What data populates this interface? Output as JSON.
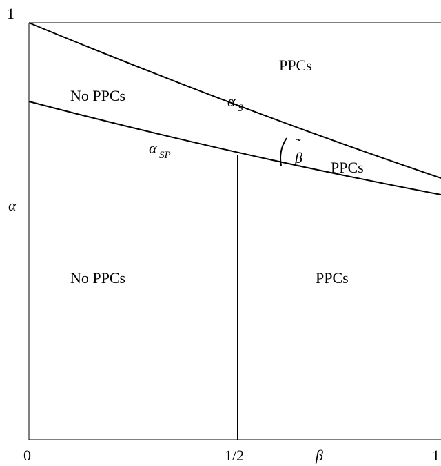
{
  "axes": {
    "y_label": "α",
    "x_label": "β",
    "y_top_tick": "1",
    "x_ticks": [
      "0",
      "1/2",
      "1"
    ]
  },
  "curves": {
    "alpha_s": {
      "symbol": "α",
      "subscript": "S"
    },
    "alpha_sp": {
      "symbol": "α",
      "subscript": "SP"
    },
    "beta_tilde": {
      "symbol": "β",
      "accent": "˜"
    }
  },
  "regions": {
    "top_left": "No PPCs",
    "top_right": "PPCs",
    "middle_right": "PPCs",
    "bottom_left": "No PPCs",
    "bottom_right": "PPCs"
  },
  "colors": {
    "ink": "#000000",
    "background": "#ffffff"
  }
}
